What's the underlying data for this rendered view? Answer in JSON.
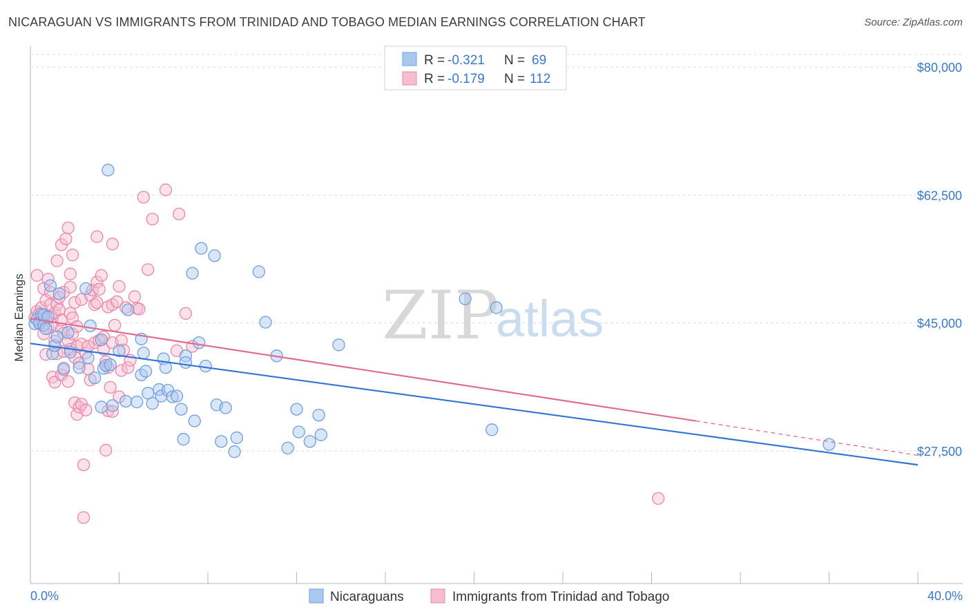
{
  "title": "NICARAGUAN VS IMMIGRANTS FROM TRINIDAD AND TOBAGO MEDIAN EARNINGS CORRELATION CHART",
  "source": "Source: ZipAtlas.com",
  "watermark": {
    "zip": "ZIP",
    "atlas": "atlas"
  },
  "legend": {
    "rows": [
      {
        "r_label": "R =",
        "r_value": "-0.321",
        "n_label": "N =",
        "n_value": "69"
      },
      {
        "r_label": "R =",
        "r_value": "-0.179",
        "n_label": "N =",
        "n_value": "112"
      }
    ]
  },
  "bottom_legend": [
    "Nicaraguans",
    "Immigrants from Trinidad and Tobago"
  ],
  "colors": {
    "blue_fill": "#a9c8f0",
    "blue_stroke": "#6f9fdb",
    "blue_line": "#2f73d4",
    "pink_fill": "#f6bcd0",
    "pink_stroke": "#ea87a8",
    "pink_line": "#e26a93",
    "grid": "#dedede",
    "tick_text": "#3a78c9"
  },
  "chart_data": {
    "type": "scatter",
    "title": "NICARAGUAN VS IMMIGRANTS FROM TRINIDAD AND TOBAGO MEDIAN EARNINGS CORRELATION CHART",
    "xlabel": "",
    "ylabel": "Median Earnings",
    "xlim": [
      0,
      40
    ],
    "ylim": [
      11000,
      81500
    ],
    "x_tick_labels": [
      "0.0%",
      "40.0%"
    ],
    "y_ticks": [
      27500,
      45000,
      62500,
      80000
    ],
    "y_tick_labels": [
      "$27,500",
      "$45,000",
      "$62,500",
      "$80,000"
    ],
    "grid": true,
    "series": [
      {
        "name": "Nicaraguans",
        "color": "blue",
        "trend": {
          "x": [
            0,
            40
          ],
          "y": [
            42200,
            25600
          ]
        },
        "points": [
          [
            0.2,
            44900
          ],
          [
            0.3,
            45500
          ],
          [
            0.4,
            45000
          ],
          [
            0.5,
            46200
          ],
          [
            0.6,
            44700
          ],
          [
            0.6,
            46100
          ],
          [
            0.7,
            44200
          ],
          [
            0.8,
            45800
          ],
          [
            0.9,
            50100
          ],
          [
            1.0,
            40800
          ],
          [
            1.1,
            41900
          ],
          [
            1.2,
            43100
          ],
          [
            1.3,
            49000
          ],
          [
            1.5,
            38800
          ],
          [
            1.7,
            43700
          ],
          [
            1.8,
            41000
          ],
          [
            2.2,
            38900
          ],
          [
            2.5,
            49700
          ],
          [
            2.6,
            40200
          ],
          [
            2.7,
            44600
          ],
          [
            2.9,
            37500
          ],
          [
            3.2,
            42700
          ],
          [
            3.2,
            33500
          ],
          [
            3.3,
            38800
          ],
          [
            3.4,
            39200
          ],
          [
            3.5,
            65900
          ],
          [
            3.6,
            39300
          ],
          [
            3.7,
            33700
          ],
          [
            4.0,
            41200
          ],
          [
            4.3,
            34300
          ],
          [
            4.4,
            46800
          ],
          [
            4.8,
            34200
          ],
          [
            5.0,
            37900
          ],
          [
            5.0,
            42800
          ],
          [
            5.1,
            40900
          ],
          [
            5.2,
            38400
          ],
          [
            5.3,
            35400
          ],
          [
            5.5,
            34000
          ],
          [
            5.8,
            35900
          ],
          [
            5.9,
            35000
          ],
          [
            6.0,
            40100
          ],
          [
            6.1,
            38900
          ],
          [
            6.2,
            35800
          ],
          [
            6.4,
            34900
          ],
          [
            6.6,
            35000
          ],
          [
            6.8,
            33200
          ],
          [
            6.9,
            29100
          ],
          [
            7.0,
            40500
          ],
          [
            7.0,
            39600
          ],
          [
            7.3,
            51800
          ],
          [
            7.4,
            31600
          ],
          [
            7.6,
            42300
          ],
          [
            7.7,
            55200
          ],
          [
            7.9,
            39100
          ],
          [
            8.3,
            54200
          ],
          [
            8.4,
            33800
          ],
          [
            8.6,
            28800
          ],
          [
            8.8,
            33400
          ],
          [
            9.2,
            27400
          ],
          [
            9.3,
            29300
          ],
          [
            10.3,
            52000
          ],
          [
            10.6,
            45100
          ],
          [
            11.1,
            40500
          ],
          [
            11.6,
            27900
          ],
          [
            12.0,
            33200
          ],
          [
            12.1,
            30100
          ],
          [
            12.6,
            28800
          ],
          [
            13.0,
            32400
          ],
          [
            13.1,
            29700
          ],
          [
            13.9,
            42000
          ],
          [
            19.6,
            48300
          ],
          [
            20.8,
            30400
          ],
          [
            21.0,
            47100
          ],
          [
            36.0,
            28400
          ]
        ]
      },
      {
        "name": "Immigrants from Trinidad and Tobago",
        "color": "pink",
        "trend": {
          "x": [
            0,
            30
          ],
          "y": [
            45600,
            31600
          ]
        },
        "trend_dashed": {
          "x": [
            30,
            40
          ],
          "y": [
            31600,
            26900
          ]
        },
        "points": [
          [
            0.2,
            45700
          ],
          [
            0.3,
            46600
          ],
          [
            0.3,
            51500
          ],
          [
            0.4,
            44900
          ],
          [
            0.4,
            46300
          ],
          [
            0.5,
            47100
          ],
          [
            0.5,
            45200
          ],
          [
            0.6,
            43500
          ],
          [
            0.6,
            49700
          ],
          [
            0.7,
            45800
          ],
          [
            0.7,
            48100
          ],
          [
            0.7,
            40700
          ],
          [
            0.8,
            51000
          ],
          [
            0.8,
            44300
          ],
          [
            0.9,
            47500
          ],
          [
            0.9,
            49200
          ],
          [
            1.0,
            45800
          ],
          [
            1.0,
            37600
          ],
          [
            1.0,
            44800
          ],
          [
            1.1,
            46400
          ],
          [
            1.1,
            42500
          ],
          [
            1.1,
            36900
          ],
          [
            1.2,
            47500
          ],
          [
            1.2,
            40800
          ],
          [
            1.2,
            53500
          ],
          [
            1.3,
            48500
          ],
          [
            1.3,
            46800
          ],
          [
            1.4,
            44200
          ],
          [
            1.4,
            45400
          ],
          [
            1.4,
            37900
          ],
          [
            1.4,
            55700
          ],
          [
            1.5,
            41100
          ],
          [
            1.5,
            38600
          ],
          [
            1.5,
            49200
          ],
          [
            1.5,
            43600
          ],
          [
            1.6,
            56500
          ],
          [
            1.7,
            58000
          ],
          [
            1.7,
            37000
          ],
          [
            1.7,
            42600
          ],
          [
            1.8,
            46300
          ],
          [
            1.8,
            51700
          ],
          [
            1.8,
            49900
          ],
          [
            1.8,
            41400
          ],
          [
            1.9,
            43500
          ],
          [
            1.9,
            45700
          ],
          [
            1.9,
            54300
          ],
          [
            2.0,
            34100
          ],
          [
            2.0,
            40300
          ],
          [
            2.0,
            47800
          ],
          [
            2.1,
            32500
          ],
          [
            2.1,
            41800
          ],
          [
            2.1,
            44500
          ],
          [
            2.2,
            33500
          ],
          [
            2.2,
            39500
          ],
          [
            2.3,
            42100
          ],
          [
            2.3,
            33900
          ],
          [
            2.3,
            48200
          ],
          [
            2.4,
            25600
          ],
          [
            2.4,
            18400
          ],
          [
            2.5,
            33100
          ],
          [
            2.5,
            40900
          ],
          [
            2.6,
            38700
          ],
          [
            2.6,
            41800
          ],
          [
            2.7,
            37200
          ],
          [
            2.7,
            48800
          ],
          [
            2.8,
            49500
          ],
          [
            2.9,
            47500
          ],
          [
            2.9,
            42300
          ],
          [
            3.0,
            50600
          ],
          [
            3.0,
            47800
          ],
          [
            3.0,
            56800
          ],
          [
            3.1,
            42600
          ],
          [
            3.1,
            49600
          ],
          [
            3.2,
            51500
          ],
          [
            3.3,
            41400
          ],
          [
            3.3,
            43100
          ],
          [
            3.4,
            39700
          ],
          [
            3.4,
            27600
          ],
          [
            3.5,
            47200
          ],
          [
            3.5,
            38900
          ],
          [
            3.5,
            33000
          ],
          [
            3.6,
            36200
          ],
          [
            3.7,
            42300
          ],
          [
            3.7,
            32900
          ],
          [
            3.7,
            47500
          ],
          [
            3.7,
            55800
          ],
          [
            3.8,
            44700
          ],
          [
            3.9,
            47900
          ],
          [
            4.0,
            34900
          ],
          [
            4.0,
            50000
          ],
          [
            4.1,
            42600
          ],
          [
            4.1,
            38500
          ],
          [
            4.2,
            41300
          ],
          [
            4.3,
            47100
          ],
          [
            4.4,
            38900
          ],
          [
            4.5,
            39900
          ],
          [
            4.7,
            48600
          ],
          [
            4.8,
            47000
          ],
          [
            4.9,
            46900
          ],
          [
            5.1,
            62200
          ],
          [
            5.3,
            52300
          ],
          [
            5.5,
            59200
          ],
          [
            6.1,
            63200
          ],
          [
            6.6,
            41200
          ],
          [
            6.7,
            59900
          ],
          [
            7.0,
            46300
          ],
          [
            7.3,
            41800
          ],
          [
            28.3,
            21000
          ]
        ]
      }
    ]
  }
}
